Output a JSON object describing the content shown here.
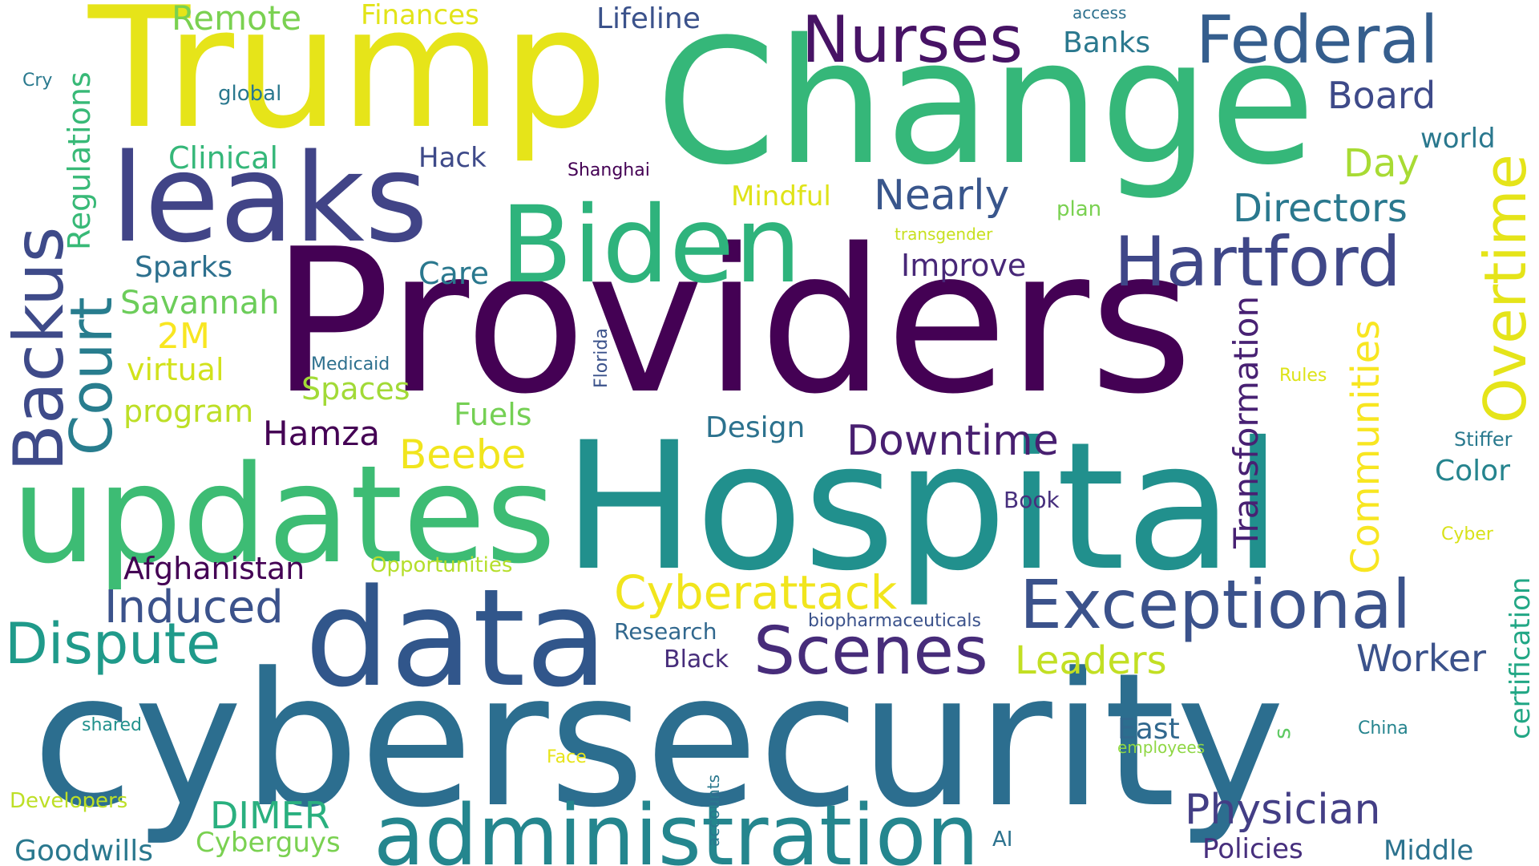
{
  "words": [
    {
      "text": "Providers",
      "color": "#440154",
      "rotated": false
    },
    {
      "text": "Hospital",
      "color": "#21908d",
      "rotated": false
    },
    {
      "text": "cybersecurity",
      "color": "#2c6e8f",
      "rotated": false
    },
    {
      "text": "Change",
      "color": "#35b779",
      "rotated": false
    },
    {
      "text": "Trump",
      "color": "#e6e419",
      "rotated": false
    },
    {
      "text": "updates",
      "color": "#3dbc74",
      "rotated": false
    },
    {
      "text": "data",
      "color": "#31568b",
      "rotated": false
    },
    {
      "text": "leaks",
      "color": "#414487",
      "rotated": false
    },
    {
      "text": "Biden",
      "color": "#2eb37c",
      "rotated": false
    },
    {
      "text": "administration",
      "color": "#24868e",
      "rotated": false
    },
    {
      "text": "Exceptional",
      "color": "#3b528b",
      "rotated": false
    },
    {
      "text": "Backus",
      "color": "#3e4a89",
      "rotated": true
    },
    {
      "text": "Hartford",
      "color": "#3f4788",
      "rotated": false
    },
    {
      "text": "Scenes",
      "color": "#472c7a",
      "rotated": false
    },
    {
      "text": "Nurses",
      "color": "#471365",
      "rotated": false
    },
    {
      "text": "Federal",
      "color": "#355e8d",
      "rotated": false
    },
    {
      "text": "Court",
      "color": "#287d8e",
      "rotated": true
    },
    {
      "text": "Overtime",
      "color": "#e5e419",
      "rotated": true
    },
    {
      "text": "Dispute",
      "color": "#1f9a8a",
      "rotated": false
    },
    {
      "text": "Cyberattack",
      "color": "#f1e51d",
      "rotated": false
    },
    {
      "text": "Induced",
      "color": "#3b528b",
      "rotated": false
    },
    {
      "text": "Physician",
      "color": "#433e85",
      "rotated": false
    },
    {
      "text": "Downtime",
      "color": "#481f70",
      "rotated": false
    },
    {
      "text": "Worker",
      "color": "#3b528b",
      "rotated": false
    },
    {
      "text": "Leaders",
      "color": "#c2df23",
      "rotated": false
    },
    {
      "text": "Nearly",
      "color": "#39568c",
      "rotated": false
    },
    {
      "text": "Directors",
      "color": "#2a788e",
      "rotated": false
    },
    {
      "text": "Board",
      "color": "#3e4a89",
      "rotated": false
    },
    {
      "text": "Communities",
      "color": "#f8e621",
      "rotated": true
    },
    {
      "text": "Transformation",
      "color": "#482173",
      "rotated": true
    },
    {
      "text": "DIMER",
      "color": "#2ab07f",
      "rotated": false
    },
    {
      "text": "Day",
      "color": "#a8db34",
      "rotated": false
    },
    {
      "text": "Goodwills",
      "color": "#2a788e",
      "rotated": false
    },
    {
      "text": "Hamza",
      "color": "#440154",
      "rotated": false
    },
    {
      "text": "Regulations",
      "color": "#38b977",
      "rotated": true
    },
    {
      "text": "Beebe",
      "color": "#f1e51d",
      "rotated": false
    },
    {
      "text": "Afghanistan",
      "color": "#440154",
      "rotated": false
    },
    {
      "text": "Clinical",
      "color": "#35b779",
      "rotated": false
    },
    {
      "text": "Remote",
      "color": "#7ad151",
      "rotated": false
    },
    {
      "text": "Savannah",
      "color": "#6ccd5a",
      "rotated": false
    },
    {
      "text": "2M",
      "color": "#f8e621",
      "rotated": false
    },
    {
      "text": "virtual",
      "color": "#d2e21b",
      "rotated": false
    },
    {
      "text": "program",
      "color": "#bddf26",
      "rotated": false
    },
    {
      "text": "Spaces",
      "color": "#a2da37",
      "rotated": false
    },
    {
      "text": "Sparks",
      "color": "#2d708e",
      "rotated": false
    },
    {
      "text": "Lifeline",
      "color": "#3b528b",
      "rotated": false
    },
    {
      "text": "Banks",
      "color": "#2a788e",
      "rotated": false
    },
    {
      "text": "Middle",
      "color": "#2c728e",
      "rotated": false
    },
    {
      "text": "Policies",
      "color": "#472f7d",
      "rotated": false
    },
    {
      "text": "Cyberguys",
      "color": "#7ad151",
      "rotated": false
    },
    {
      "text": "Improve",
      "color": "#482878",
      "rotated": false
    },
    {
      "text": "Care",
      "color": "#2a788e",
      "rotated": false
    },
    {
      "text": "Design",
      "color": "#2c728e",
      "rotated": false
    },
    {
      "text": "Fuels",
      "color": "#75d054",
      "rotated": false
    },
    {
      "text": "Finances",
      "color": "#e2e418",
      "rotated": false
    },
    {
      "text": "Hack",
      "color": "#3e4a89",
      "rotated": false
    },
    {
      "text": "Mindful",
      "color": "#dfe318",
      "rotated": false
    },
    {
      "text": "East",
      "color": "#31688e",
      "rotated": false
    },
    {
      "text": "Color",
      "color": "#25848e",
      "rotated": false
    },
    {
      "text": "world",
      "color": "#2a788e",
      "rotated": false
    },
    {
      "text": "Developers",
      "color": "#bddf26",
      "rotated": false
    },
    {
      "text": "Research",
      "color": "#31688e",
      "rotated": false
    },
    {
      "text": "Black",
      "color": "#472d7b",
      "rotated": false
    },
    {
      "text": "certification",
      "color": "#22a785",
      "rotated": true
    },
    {
      "text": "Opportunities",
      "color": "#b5de2b",
      "rotated": false
    },
    {
      "text": "Book",
      "color": "#472f7d",
      "rotated": false
    },
    {
      "text": "biopharmaceuticals",
      "color": "#3b528b",
      "rotated": false
    },
    {
      "text": "shared",
      "color": "#21918c",
      "rotated": false
    },
    {
      "text": "Stiffer",
      "color": "#29798e",
      "rotated": false
    },
    {
      "text": "Shanghai",
      "color": "#440154",
      "rotated": false
    },
    {
      "text": "Medicaid",
      "color": "#2d708e",
      "rotated": false
    },
    {
      "text": "Florida",
      "color": "#3b528b",
      "rotated": true
    },
    {
      "text": "global",
      "color": "#2a788e",
      "rotated": false
    },
    {
      "text": "plan",
      "color": "#7ad151",
      "rotated": false
    },
    {
      "text": "transgender",
      "color": "#c8e020",
      "rotated": false
    },
    {
      "text": "Rules",
      "color": "#dde318",
      "rotated": false
    },
    {
      "text": "Cyber",
      "color": "#d8e219",
      "rotated": false
    },
    {
      "text": "China",
      "color": "#25848e",
      "rotated": false
    },
    {
      "text": "employees",
      "color": "#8fd744",
      "rotated": false
    },
    {
      "text": "AI",
      "color": "#2c728e",
      "rotated": false
    },
    {
      "text": "accounts",
      "color": "#2a788e",
      "rotated": true
    },
    {
      "text": "Face",
      "color": "#e7e419",
      "rotated": false
    },
    {
      "text": "access",
      "color": "#2d708e",
      "rotated": false
    },
    {
      "text": "Cry",
      "color": "#29798e",
      "rotated": false
    },
    {
      "text": "s",
      "color": "#5ec962",
      "rotated": true
    }
  ]
}
